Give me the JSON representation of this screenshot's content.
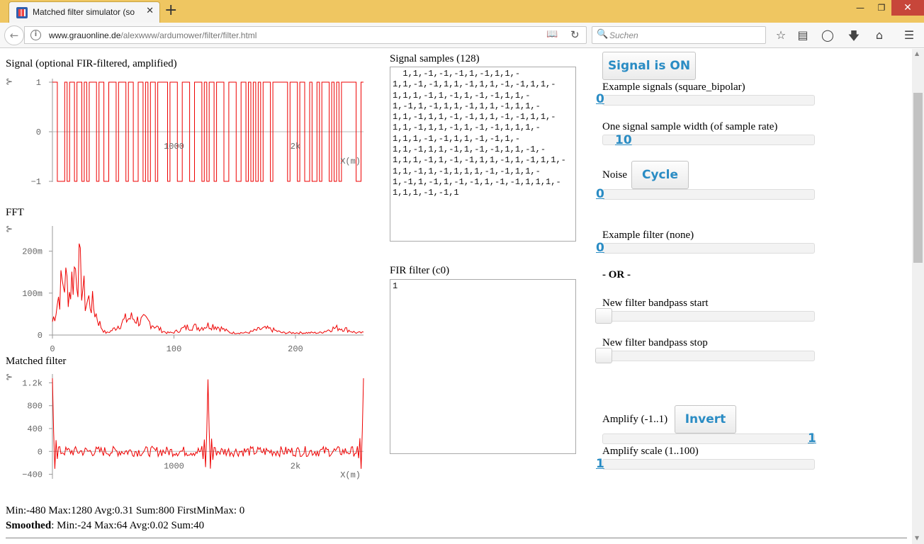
{
  "browser": {
    "tab_title": "Matched filter simulator (so",
    "tab_close": "✕",
    "new_tab": "+",
    "win_min": "—",
    "win_max": "❐",
    "win_close": "✕",
    "url_host": "www.grauonline.de",
    "url_path": "/alexwww/ardumower/filter/filter.html",
    "search_placeholder": "Suchen",
    "icons": [
      "back-arrow-icon",
      "info-icon",
      "reader-view-icon",
      "reload-icon",
      "search-icon",
      "bookmark-star-icon",
      "reading-list-icon",
      "pocket-icon",
      "download-icon",
      "home-icon",
      "menu-icon"
    ]
  },
  "left": {
    "signal_label": "Signal (optional FIR-filtered, amplified)",
    "fft_label": "FFT",
    "matched_label": "Matched filter",
    "stats_line1": "Min:-480 Max:1280 Avg:0.31 Sum:800 FirstMinMax: 0",
    "smoothed_label": "Smoothed",
    "stats_line2": ": Min:-24 Max:64 Avg:0.02 Sum:40"
  },
  "charts": {
    "signal_y_ticks": [
      "1",
      "0",
      "−1"
    ],
    "signal_x_ticks": [
      "1000",
      "2k"
    ],
    "signal_x_label": "X(m)",
    "fft_y_ticks": [
      "200m",
      "100m",
      "0"
    ],
    "fft_x_ticks": [
      "0",
      "100",
      "200"
    ],
    "matched_y_ticks": [
      "1.2k",
      "800",
      "400",
      "0",
      "−400"
    ],
    "matched_x_ticks": [
      "1000",
      "2k"
    ],
    "matched_x_label": "X(m)",
    "cursor_glyph": "⊱"
  },
  "chart_data": [
    {
      "type": "line",
      "title": "Signal (optional FIR-filtered, amplified)",
      "xlabel": "X(m)",
      "ylim": [
        -1,
        1
      ],
      "x_ticks": [
        1000,
        2000
      ],
      "description_of_series": "square bipolar signal alternating between 1 and -1 (128 samples, sample width 10)",
      "series": [
        {
          "values": [
            1,
            1,
            -1,
            -1,
            -1,
            1,
            -1,
            1,
            1,
            -1,
            1,
            1,
            -1,
            1,
            -1,
            1,
            1,
            1,
            -1,
            1,
            1,
            -1,
            -1,
            1,
            1,
            1,
            -1,
            1,
            1,
            1,
            -1,
            1,
            1,
            -1,
            -1,
            1,
            1,
            -1,
            1,
            -1,
            1,
            1,
            -1,
            1,
            1,
            1,
            1,
            -1,
            1,
            1,
            1,
            -1,
            -1,
            1,
            1,
            1,
            -1,
            -1,
            1,
            1,
            1,
            -1,
            1,
            -1,
            1,
            1,
            -1,
            1,
            1,
            1,
            -1,
            -1,
            1,
            1,
            1,
            -1,
            -1,
            1,
            1,
            -1,
            1,
            -1,
            1,
            -1,
            1,
            -1,
            1,
            1,
            1,
            -1,
            1,
            1,
            1,
            1,
            1,
            1,
            -1,
            1,
            1,
            1,
            -1,
            1,
            1,
            -1,
            -1,
            1,
            -1,
            -1,
            1,
            -1,
            1,
            1,
            1,
            -1,
            1,
            -1,
            1,
            -1,
            1,
            1,
            1,
            1,
            1,
            1,
            -1,
            -1,
            1
          ]
        }
      ]
    },
    {
      "type": "line",
      "title": "FFT",
      "ylim": [
        0,
        0.24
      ],
      "xlim": [
        0,
        256
      ],
      "x_ticks": [
        0,
        100,
        200
      ],
      "y_ticks": [
        0,
        0.1,
        0.2
      ],
      "series": [
        {
          "peak_values": [
            [
              10,
              0.19
            ],
            [
              20,
              0.24
            ],
            [
              30,
              0.12
            ],
            [
              65,
              0.06
            ],
            [
              75,
              0.05
            ],
            [
              115,
              0.03
            ],
            [
              130,
              0.035
            ],
            [
              175,
              0.022
            ],
            [
              235,
              0.025
            ]
          ]
        }
      ]
    },
    {
      "type": "line",
      "title": "Matched filter",
      "xlabel": "X(m)",
      "ylim": [
        -480,
        1280
      ],
      "y_ticks": [
        -400,
        0,
        400,
        800,
        1200
      ],
      "x_ticks": [
        1000,
        2000
      ],
      "series": [
        {
          "spikes": [
            [
              0,
              1280
            ],
            [
              1280,
              1260
            ],
            [
              2560,
              1280
            ]
          ],
          "min": -480,
          "max": 1280
        }
      ]
    }
  ],
  "middle": {
    "samples_label": "Signal samples (128)",
    "samples_text": "  1,1,-1,-1,-1,1,-1,1,1,-\n1,1,-1,-1,1,1,-1,1,1,-1,-1,1,1,-\n1,1,1,-1,1,-1,1,-1,-1,1,1,-\n1,-1,1,-1,1,1,-1,1,1,-1,1,1,-\n1,1,-1,1,1,-1,-1,1,1,-1,-1,1,1,-\n1,1,-1,1,1,-1,1,-1,-1,1,1,1,-\n1,1,1,-1,-1,1,1,-1,-1,1,-\n1,1,-1,1,1,-1,1,-1,-1,1,1,-1,-\n1,1,1,-1,1,-1,-1,1,1,-1,1,-1,1,1,-\n1,1,-1,1,-1,1,1,1,-1,-1,1,1,-\n1,-1,1,-1,1,-1,-1,1,-1,-1,1,1,1,-\n1,1,1,-1,-1,1",
    "fir_label": "FIR filter (c0)",
    "fir_text": "1"
  },
  "right": {
    "signal_button": "Signal is ON",
    "example_signals_label": "Example signals (square_bipolar)",
    "example_signals_value": "0",
    "sample_width_label": "One signal sample width (of sample rate)",
    "sample_width_value": "10",
    "noise_label": "Noise",
    "cycle_button": "Cycle",
    "noise_value": "0",
    "example_filter_label": "Example filter (none)",
    "example_filter_value": "0",
    "or_label": "- OR -",
    "bandpass_start_label": "New filter bandpass start",
    "bandpass_stop_label": "New filter bandpass stop",
    "amplify_label": "Amplify (-1..1)",
    "invert_button": "Invert",
    "amplify_value": "1",
    "amplify_scale_label": "Amplify scale (1..100)",
    "amplify_scale_value": "1"
  }
}
